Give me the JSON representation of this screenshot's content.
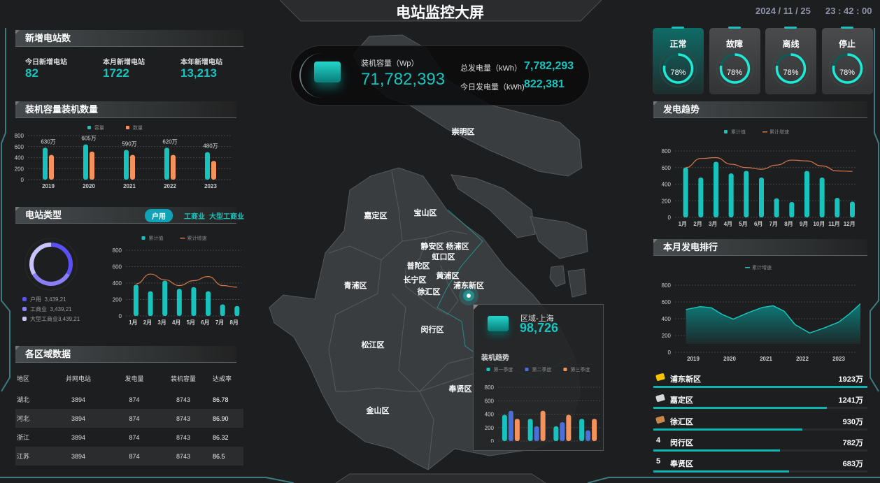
{
  "header": {
    "title": "电站监控大屏",
    "date": "2024 / 11 / 25",
    "time": "23 : 42 : 00"
  },
  "new_stations": {
    "title": "新增电站数",
    "items": [
      {
        "label": "今日新增电站",
        "value": "82"
      },
      {
        "label": "本月新增电站",
        "value": "1722"
      },
      {
        "label": "本年新增电站",
        "value": "13,213"
      }
    ]
  },
  "capacity": {
    "title": "装机容量装机数量"
  },
  "station_type": {
    "title": "电站类型",
    "tabs": [
      "户用",
      "工商业",
      "大型工商业"
    ],
    "active_tab": "户用",
    "legend": [
      {
        "name": "户用",
        "value": "3,439,21",
        "color": "#5b4ff5"
      },
      {
        "name": "工商业",
        "value": "3,439,21",
        "color": "#8a7ff7"
      },
      {
        "name": "大型工商业",
        "value": "3,439,21",
        "color": "#c8c4fb"
      }
    ]
  },
  "region_table": {
    "title": "各区域数据",
    "columns": [
      "地区",
      "并网电站",
      "发电量",
      "装机容量",
      "达成率"
    ],
    "rows": [
      [
        "湖北",
        "3894",
        "874",
        "8743",
        "86.78"
      ],
      [
        "河北",
        "3894",
        "874",
        "8743",
        "86.90"
      ],
      [
        "浙江",
        "3894",
        "874",
        "8743",
        "86.32"
      ],
      [
        "江苏",
        "3894",
        "874",
        "8743",
        "86.5"
      ]
    ]
  },
  "summary": {
    "capacity_label": "装机容量（Wp）",
    "capacity_value": "71,782,393",
    "total_label": "总发电量（kWh）",
    "total_value": "7,782,293",
    "today_label": "今日发电量（kWh)",
    "today_value": "822,381"
  },
  "map": {
    "districts": [
      "崇明区",
      "嘉定区",
      "宝山区",
      "静安区",
      "杨浦区",
      "虹口区",
      "普陀区",
      "黄浦区",
      "长宁区",
      "徐汇区",
      "浦东新区",
      "青浦区",
      "松江区",
      "闵行区",
      "奉贤区",
      "金山区"
    ]
  },
  "popup": {
    "region_label": "区域-上海",
    "region_value": "98,726",
    "trend_title": "装机趋势"
  },
  "status_cards": [
    {
      "label": "正常",
      "percent": 78,
      "text": "78%"
    },
    {
      "label": "故障",
      "percent": 78,
      "text": "78%"
    },
    {
      "label": "离线",
      "percent": 78,
      "text": "78%"
    },
    {
      "label": "停止",
      "percent": 78,
      "text": "78%"
    }
  ],
  "gen_trend": {
    "title": "发电趋势"
  },
  "monthly_rank": {
    "title": "本月发电排行",
    "items": [
      {
        "rank": "1",
        "name": "浦东新区",
        "value": "1923万",
        "progress": 1.0,
        "medal": "#f5c400"
      },
      {
        "rank": "2",
        "name": "嘉定区",
        "value": "1241万",
        "progress": 0.81,
        "medal": "#d8d8d8"
      },
      {
        "rank": "3",
        "name": "徐汇区",
        "value": "930万",
        "progress": 0.695,
        "medal": "#c8864a"
      },
      {
        "rank": "4",
        "name": "闵行区",
        "value": "782万",
        "progress": 0.59
      },
      {
        "rank": "5",
        "name": "奉贤区",
        "value": "683万",
        "progress": 0.635
      }
    ]
  },
  "colors": {
    "accent": "#19c3bd",
    "orange": "#f5915a",
    "blue": "#4a6fd8"
  },
  "chart_data": [
    {
      "id": "capacity",
      "type": "bar",
      "categories": [
        "2019",
        "2020",
        "2021",
        "2022",
        "2023"
      ],
      "ylim": [
        0,
        800
      ],
      "yticks": [
        0,
        200,
        400,
        600,
        800
      ],
      "grid": true,
      "legend": "top",
      "series": [
        {
          "name": "容量",
          "values": [
            580,
            640,
            540,
            580,
            500
          ],
          "color": "#19c3bd"
        },
        {
          "name": "数量",
          "values": [
            450,
            510,
            450,
            450,
            340
          ],
          "color": "#f5915a"
        }
      ],
      "data_labels": [
        "630万",
        "605万",
        "590万",
        "620万",
        "480万"
      ]
    },
    {
      "id": "type",
      "type": "bar+line",
      "categories": [
        "1月",
        "2月",
        "3月",
        "4月",
        "5月",
        "6月",
        "7月",
        "8月"
      ],
      "ylim": [
        0,
        800
      ],
      "yticks": [
        0,
        200,
        400,
        600,
        800
      ],
      "grid": true,
      "legend": "top",
      "series": [
        {
          "name": "累计值",
          "kind": "bar",
          "values": [
            380,
            300,
            430,
            330,
            350,
            300,
            140,
            120
          ],
          "color": "#19c3bd"
        },
        {
          "name": "累计增速",
          "kind": "line",
          "values": [
            390,
            510,
            440,
            370,
            430,
            480,
            370,
            350
          ],
          "color": "#d9764a"
        }
      ]
    },
    {
      "id": "gen",
      "type": "bar+line",
      "categories": [
        "1月",
        "2月",
        "3月",
        "4月",
        "5月",
        "6月",
        "7月",
        "8月",
        "9月",
        "10月",
        "11月",
        "12月"
      ],
      "ylim": [
        0,
        800
      ],
      "yticks": [
        0,
        200,
        400,
        600,
        800
      ],
      "grid": true,
      "legend": "top",
      "series": [
        {
          "name": "累计值",
          "kind": "bar",
          "values": [
            600,
            480,
            670,
            530,
            560,
            480,
            230,
            185,
            560,
            480,
            235,
            190
          ],
          "color": "#19c3bd"
        },
        {
          "name": "累计增速",
          "kind": "line",
          "values": [
            600,
            710,
            720,
            640,
            600,
            580,
            630,
            690,
            680,
            620,
            560,
            555
          ],
          "color": "#d9764a"
        }
      ]
    },
    {
      "id": "rank_area",
      "type": "area",
      "categories": [
        "2019",
        "2020",
        "2021",
        "2022",
        "2023"
      ],
      "ylim": [
        0,
        800
      ],
      "yticks": [
        0,
        200,
        400,
        600,
        800
      ],
      "grid": true,
      "legend": "top",
      "series": [
        {
          "name": "累计增速",
          "color": "#19c3bd",
          "x": [
            2018.8,
            2019.2,
            2019.5,
            2019.8,
            2020.1,
            2020.5,
            2020.9,
            2021.2,
            2021.5,
            2021.8,
            2022.2,
            2022.6,
            2023.0,
            2023.3,
            2023.6
          ],
          "values": [
            510,
            545,
            530,
            450,
            395,
            470,
            535,
            555,
            490,
            330,
            230,
            290,
            360,
            460,
            580
          ]
        }
      ]
    },
    {
      "id": "popup",
      "type": "bar",
      "categories": [
        "2020",
        "2021",
        "2022",
        "2023"
      ],
      "ylim": [
        0,
        800
      ],
      "yticks": [
        0,
        200,
        400,
        600,
        800
      ],
      "grid": true,
      "legend": "top",
      "series": [
        {
          "name": "第一季度",
          "values": [
            390,
            330,
            220,
            330
          ],
          "color": "#19c3bd"
        },
        {
          "name": "第二季度",
          "values": [
            450,
            220,
            280,
            160
          ],
          "color": "#4a6fd8"
        },
        {
          "name": "第三季度",
          "values": [
            330,
            450,
            390,
            330
          ],
          "color": "#f5915a"
        }
      ]
    }
  ]
}
